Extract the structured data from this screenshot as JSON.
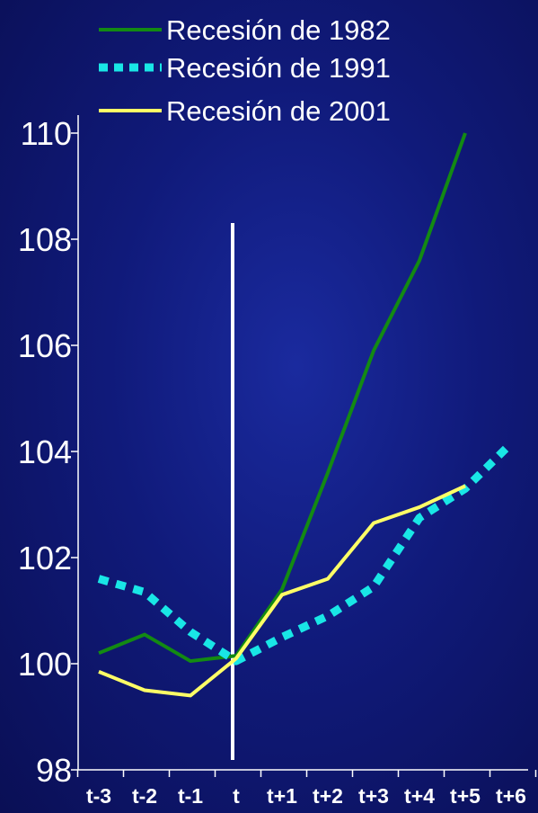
{
  "chart_data": {
    "type": "line",
    "categories": [
      "t-3",
      "t-2",
      "t-1",
      "t",
      "t+1",
      "t+2",
      "t+3",
      "t+4",
      "t+5",
      "t+6"
    ],
    "ylim": [
      98,
      110
    ],
    "yticks": [
      "98",
      "100",
      "102",
      "104",
      "106",
      "108",
      "110"
    ],
    "grid": false,
    "legend_position": "top",
    "marker_category": "t",
    "series": [
      {
        "name": "Recesión de 1982",
        "color": "#138a13",
        "style": "solid",
        "values": [
          100.2,
          100.55,
          100.05,
          100.15,
          101.4,
          103.6,
          105.9,
          107.6,
          110.0,
          null
        ]
      },
      {
        "name": "Recesión de 1991",
        "color": "#19e6e6",
        "style": "dashed",
        "values": [
          101.6,
          101.35,
          100.6,
          100.05,
          100.5,
          100.9,
          101.45,
          102.75,
          103.3,
          104.15
        ]
      },
      {
        "name": "Recesión de 2001",
        "color": "#ffff66",
        "style": "solid",
        "values": [
          99.85,
          99.5,
          99.4,
          100.1,
          101.3,
          101.6,
          102.65,
          102.95,
          103.35,
          null
        ]
      }
    ]
  }
}
